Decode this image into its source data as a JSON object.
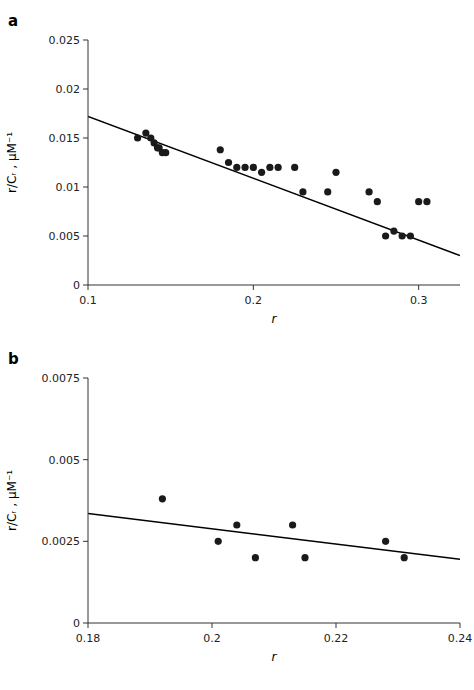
{
  "chart_data": [
    {
      "type": "scatter",
      "title": "a",
      "xlabel": "r",
      "ylabel": "r/Cᵣ , μM⁻¹",
      "xlim": [
        0.1,
        0.325
      ],
      "ylim": [
        0,
        0.025
      ],
      "xticks": [
        0.1,
        0.2,
        0.3
      ],
      "yticks": [
        0,
        0.005,
        0.01,
        0.015,
        0.02,
        0.025
      ],
      "grid": false,
      "series": [
        {
          "type": "line",
          "color": "#000000",
          "x": [
            0.1,
            0.325
          ],
          "values": [
            0.0172,
            0.003
          ]
        },
        {
          "type": "scatter",
          "color": "#1a1a1a",
          "marker": "circle",
          "x": [
            0.13,
            0.135,
            0.138,
            0.14,
            0.142,
            0.143,
            0.145,
            0.147,
            0.18,
            0.185,
            0.19,
            0.195,
            0.2,
            0.205,
            0.21,
            0.215,
            0.225,
            0.23,
            0.245,
            0.25,
            0.27,
            0.275,
            0.28,
            0.285,
            0.29,
            0.295,
            0.3,
            0.305
          ],
          "values": [
            0.015,
            0.0155,
            0.015,
            0.0145,
            0.014,
            0.014,
            0.0135,
            0.0135,
            0.0138,
            0.0125,
            0.012,
            0.012,
            0.012,
            0.0115,
            0.012,
            0.012,
            0.012,
            0.0095,
            0.0095,
            0.0115,
            0.0095,
            0.0085,
            0.005,
            0.0055,
            0.005,
            0.005,
            0.0085,
            0.0085
          ]
        }
      ]
    },
    {
      "type": "scatter",
      "title": "b",
      "xlabel": "r",
      "ylabel": "r/Cᵣ , μM⁻¹",
      "xlim": [
        0.18,
        0.24
      ],
      "ylim": [
        0,
        0.0075
      ],
      "xticks": [
        0.18,
        0.2,
        0.22,
        0.24
      ],
      "yticks": [
        0,
        0.0025,
        0.005,
        0.0075
      ],
      "grid": false,
      "series": [
        {
          "type": "line",
          "color": "#000000",
          "x": [
            0.18,
            0.24
          ],
          "values": [
            0.00335,
            0.00195
          ]
        },
        {
          "type": "scatter",
          "color": "#1a1a1a",
          "marker": "circle",
          "x": [
            0.192,
            0.201,
            0.204,
            0.207,
            0.213,
            0.215,
            0.228,
            0.231
          ],
          "values": [
            0.0038,
            0.0025,
            0.003,
            0.002,
            0.003,
            0.002,
            0.0025,
            0.002
          ]
        }
      ]
    }
  ]
}
